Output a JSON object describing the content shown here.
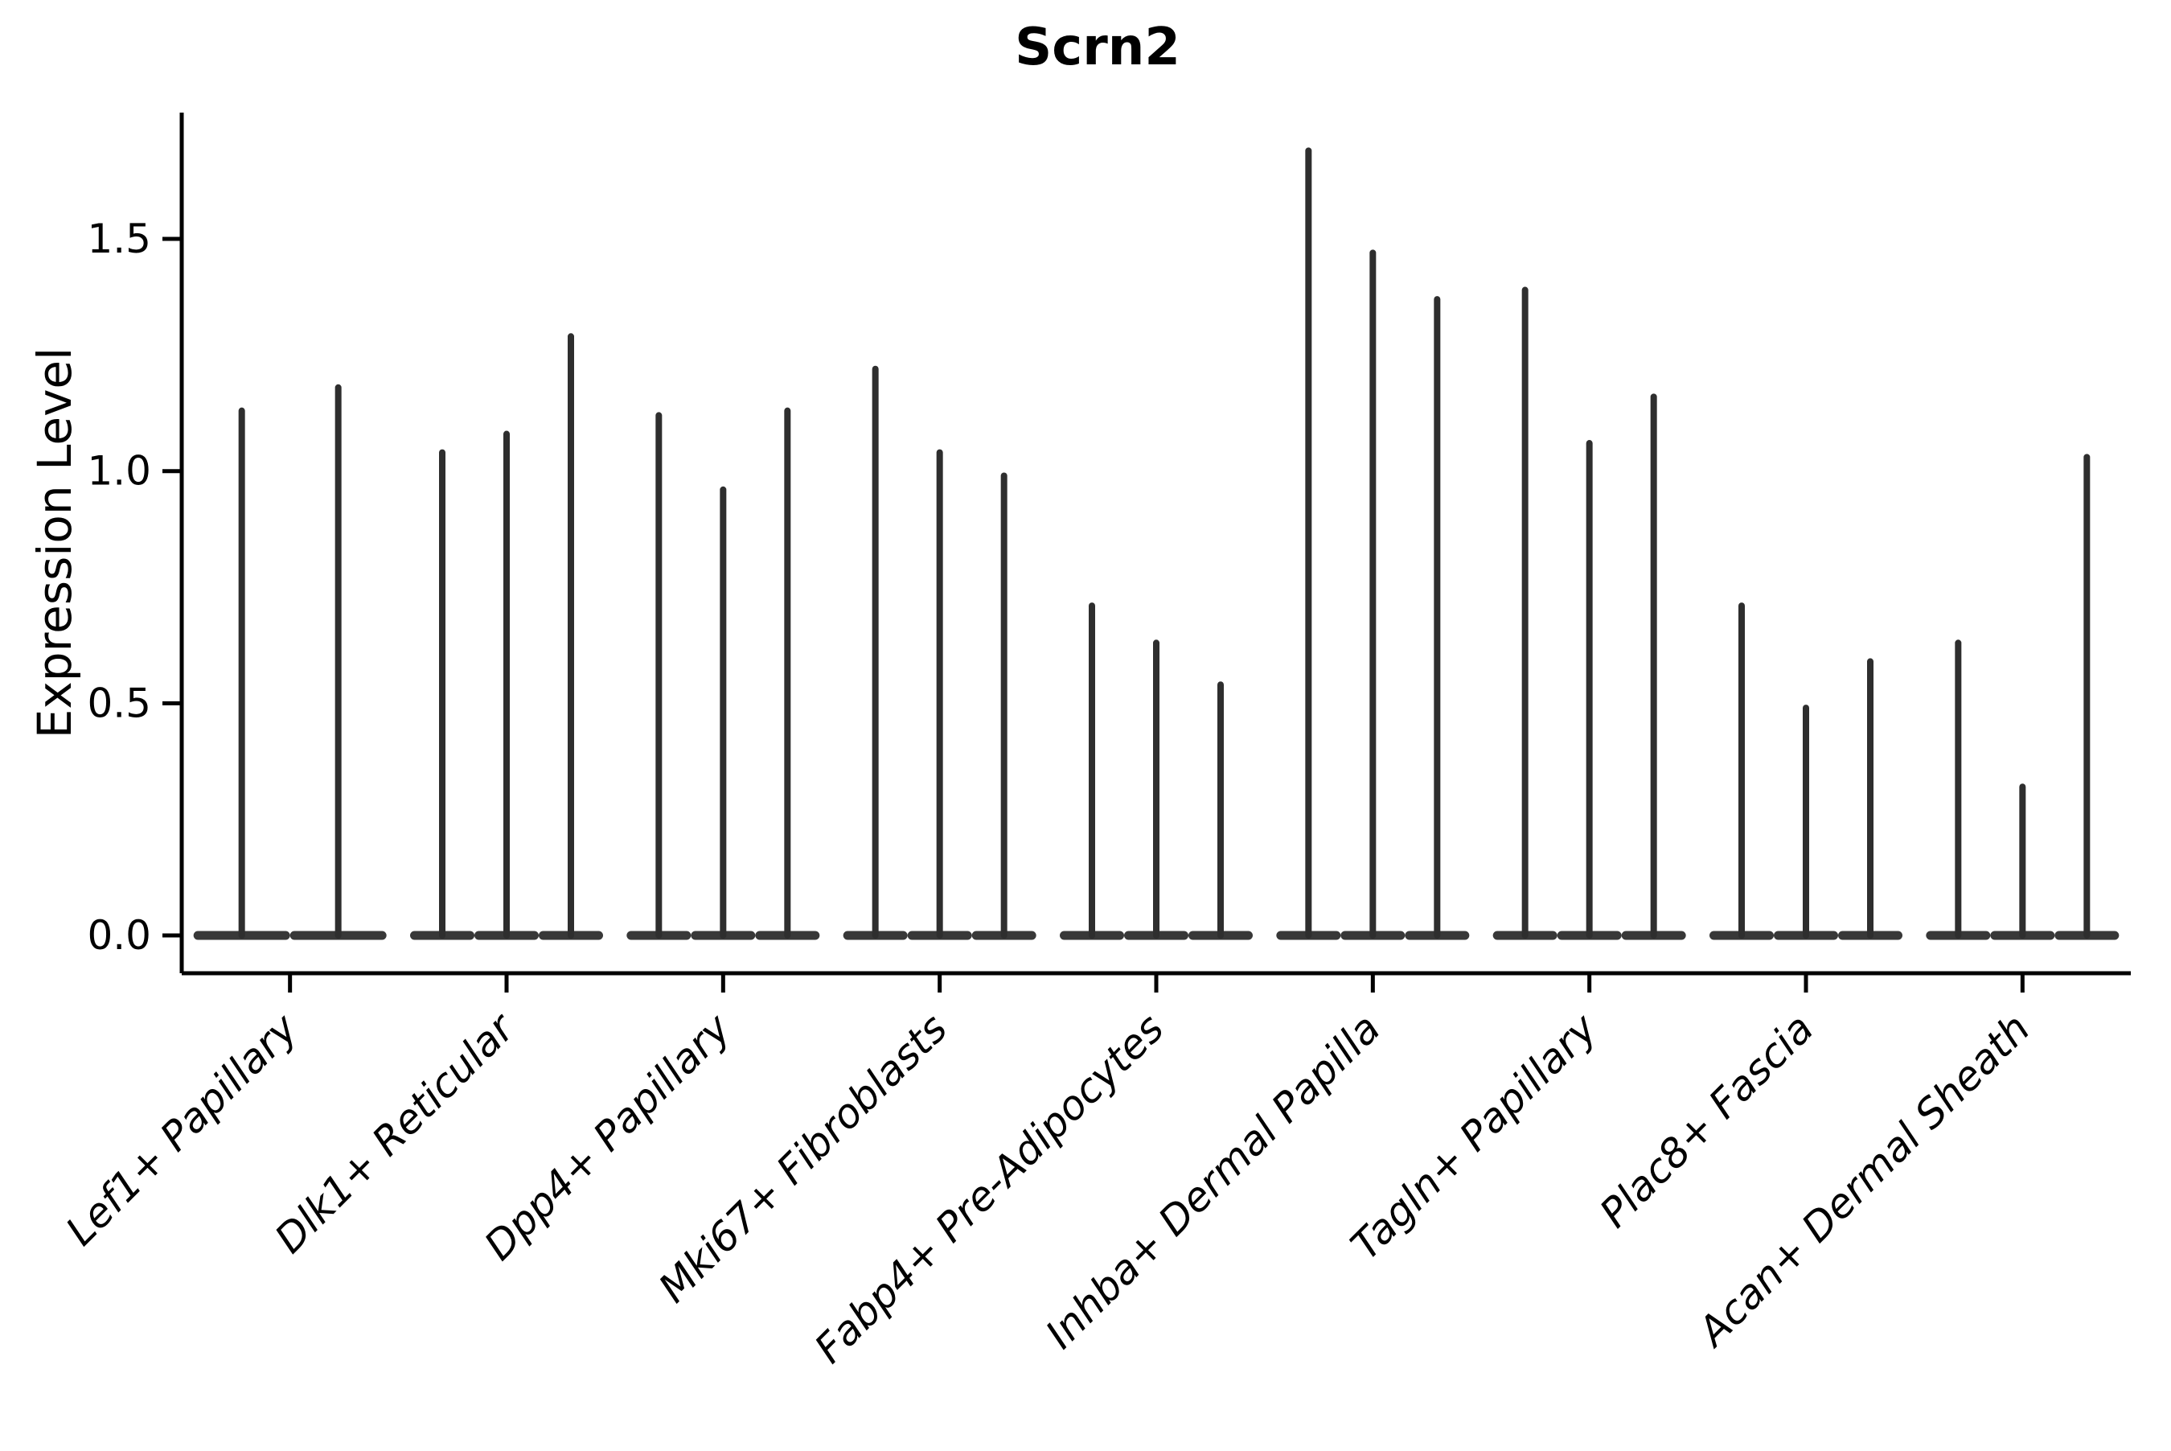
{
  "title": "Scrn2",
  "y_axis_label": "Expression Level",
  "chart_data": {
    "type": "violin",
    "title": "Scrn2",
    "ylabel": "Expression Level",
    "xlabel": "",
    "grid": "off",
    "legend": "none",
    "yticks": [
      "0.0",
      "0.5",
      "1.0",
      "1.5"
    ],
    "ytick_values": [
      0.0,
      0.5,
      1.0,
      1.5
    ],
    "ylim": [
      -0.08,
      1.77
    ],
    "baseline_value": 0.0,
    "violin_color": "#2e2e2e",
    "violin_base_color": "#383838",
    "axis_color": "#000000",
    "categories": [
      "Lef1+ Papillary",
      "Dlk1+ Reticular",
      "Dpp4+ Papillary",
      "Mki67+ Fibroblasts",
      "Fabp4+ Pre-Adipocytes",
      "Inhba+ Dermal Papilla",
      "Tagln+ Papillary",
      "Plac8+ Fascia",
      "Acan+ Dermal Sheath"
    ],
    "series": [
      {
        "category": "Lef1+ Papillary",
        "violin_max_values": [
          1.13,
          1.18
        ]
      },
      {
        "category": "Dlk1+ Reticular",
        "violin_max_values": [
          1.04,
          1.08,
          1.29
        ]
      },
      {
        "category": "Dpp4+ Papillary",
        "violin_max_values": [
          1.12,
          0.96,
          1.13
        ]
      },
      {
        "category": "Mki67+ Fibroblasts",
        "violin_max_values": [
          1.22,
          1.04,
          0.99
        ]
      },
      {
        "category": "Fabp4+ Pre-Adipocytes",
        "violin_max_values": [
          0.71,
          0.63,
          0.54
        ]
      },
      {
        "category": "Inhba+ Dermal Papilla",
        "violin_max_values": [
          1.69,
          1.47,
          1.37
        ]
      },
      {
        "category": "Tagln+ Papillary",
        "violin_max_values": [
          1.39,
          1.06,
          1.16
        ]
      },
      {
        "category": "Plac8+ Fascia",
        "violin_max_values": [
          0.71,
          0.49,
          0.59
        ]
      },
      {
        "category": "Acan+ Dermal Sheath",
        "violin_max_values": [
          0.63,
          0.32,
          1.03
        ]
      }
    ]
  }
}
